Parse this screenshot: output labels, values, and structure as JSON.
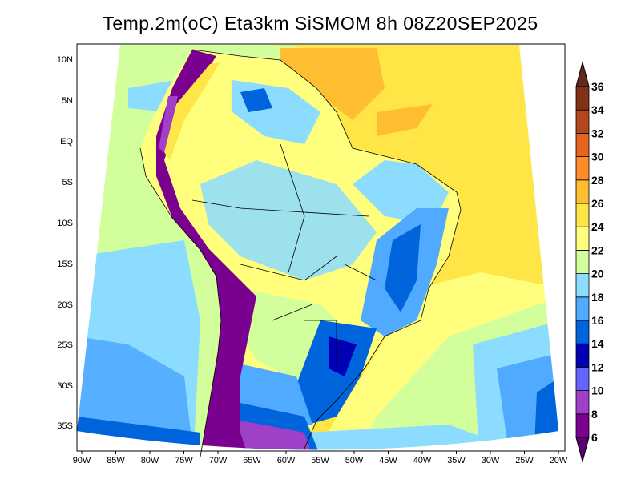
{
  "title": "Temp.2m(oC) Eta3km SiSMOM 8h 08Z20SEP2025",
  "lat_labels": [
    "10N",
    "5N",
    "EQ",
    "5S",
    "10S",
    "15S",
    "20S",
    "25S",
    "30S",
    "35S"
  ],
  "lon_labels": [
    "90W",
    "85W",
    "80W",
    "75W",
    "70W",
    "65W",
    "60W",
    "55W",
    "50W",
    "45W",
    "40W",
    "35W",
    "30W",
    "25W",
    "20W"
  ],
  "colorbar": {
    "levels": [
      "6",
      "8",
      "10",
      "12",
      "14",
      "16",
      "18",
      "20",
      "22",
      "24",
      "26",
      "28",
      "30",
      "32",
      "34",
      "36"
    ],
    "colors": [
      "#7a0090",
      "#a040c8",
      "#6464ff",
      "#0000b4",
      "#0064dc",
      "#50aaff",
      "#8cdcff",
      "#d2ff9b",
      "#ffff7d",
      "#ffe646",
      "#ffbe32",
      "#ff8c28",
      "#e6641e",
      "#b4461e",
      "#823214"
    ],
    "under_color": "#5a0070",
    "over_color": "#64281e"
  }
}
